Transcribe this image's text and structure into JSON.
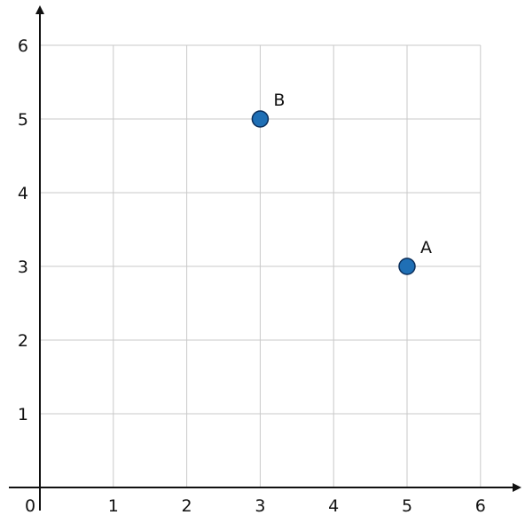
{
  "chart_data": {
    "type": "scatter",
    "title": "",
    "xlabel": "",
    "ylabel": "",
    "xlim": [
      0,
      6
    ],
    "ylim": [
      0,
      6
    ],
    "x_ticks": [
      "1",
      "2",
      "3",
      "4",
      "5",
      "6"
    ],
    "y_ticks": [
      "1",
      "2",
      "3",
      "4",
      "5",
      "6"
    ],
    "origin_label": "0",
    "grid": true,
    "point_color": "#1f6fb5",
    "points": [
      {
        "label": "A",
        "x": 5,
        "y": 3
      },
      {
        "label": "B",
        "x": 3,
        "y": 5
      }
    ]
  }
}
